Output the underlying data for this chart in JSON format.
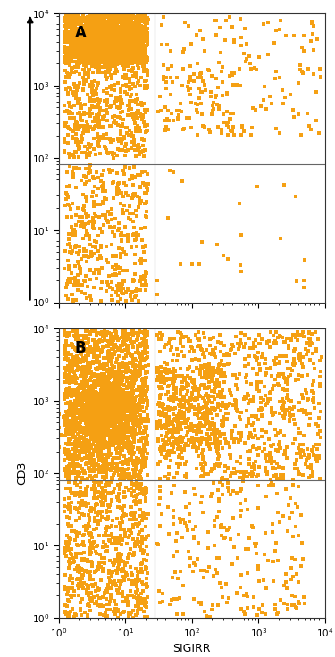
{
  "dot_color": "#F5A013",
  "dot_size": 5,
  "dot_alpha": 1.0,
  "xlim_log": [
    1.0,
    10000.0
  ],
  "ylim_log": [
    1.0,
    10000.0
  ],
  "xlabel": "SIGIRR",
  "ylabel": "CD3",
  "panel_labels": [
    "A",
    "B"
  ],
  "quadrant_vline": 28.0,
  "quadrant_hline_A": 80.0,
  "quadrant_hline_B": 80.0,
  "line_color": "#666666",
  "line_width": 0.8,
  "background_color": "#ffffff",
  "n_points_A": 2500,
  "n_points_B": 4000,
  "seed_A": 42,
  "seed_B": 7
}
